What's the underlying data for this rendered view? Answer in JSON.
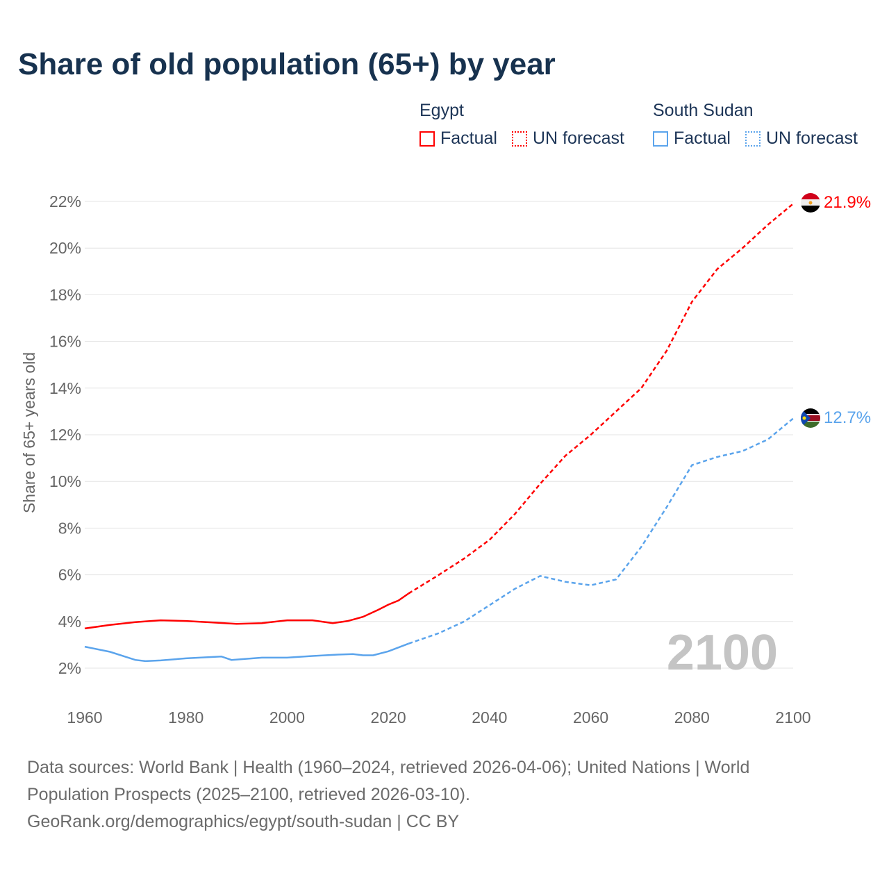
{
  "title": "Share of old population (65+) by year",
  "legend": {
    "groups": [
      {
        "name": "Egypt",
        "factual": "Factual",
        "forecast": "UN forecast",
        "color": "#ff0000"
      },
      {
        "name": "South Sudan",
        "factual": "Factual",
        "forecast": "UN forecast",
        "color": "#5ba4ec"
      }
    ]
  },
  "chart_data": {
    "type": "line",
    "title": "Share of old population (65+) by year",
    "ylabel": "Share of 65+ years old",
    "xlabel": "",
    "xlim": [
      1960,
      2100
    ],
    "ylim": [
      1,
      23
    ],
    "xticks": [
      "1960",
      "1980",
      "2000",
      "2020",
      "2040",
      "2060",
      "2080",
      "2100"
    ],
    "yticks": [
      "2%",
      "4%",
      "6%",
      "8%",
      "10%",
      "12%",
      "14%",
      "16%",
      "18%",
      "20%",
      "22%"
    ],
    "year_watermark": "2100",
    "series": [
      {
        "name": "Egypt",
        "color": "#ff0000",
        "end_label": "21.9%",
        "factual": {
          "x": [
            1960,
            1965,
            1970,
            1975,
            1980,
            1985,
            1990,
            1995,
            2000,
            2005,
            2009,
            2012,
            2015,
            2018,
            2020,
            2022,
            2024
          ],
          "y": [
            3.7,
            3.85,
            3.97,
            4.05,
            4.02,
            3.96,
            3.9,
            3.93,
            4.05,
            4.05,
            3.93,
            4.02,
            4.2,
            4.5,
            4.72,
            4.9,
            5.2
          ]
        },
        "forecast": {
          "x": [
            2024,
            2030,
            2035,
            2040,
            2045,
            2050,
            2055,
            2060,
            2065,
            2070,
            2075,
            2080,
            2085,
            2090,
            2095,
            2100
          ],
          "y": [
            5.2,
            6.0,
            6.7,
            7.5,
            8.6,
            9.9,
            11.1,
            12.0,
            13.0,
            14.0,
            15.6,
            17.7,
            19.1,
            20.0,
            21.0,
            21.9
          ]
        }
      },
      {
        "name": "South Sudan",
        "color": "#5ba4ec",
        "end_label": "12.7%",
        "factual": {
          "x": [
            1960,
            1965,
            1970,
            1972,
            1975,
            1980,
            1987,
            1989,
            1995,
            2000,
            2005,
            2010,
            2013,
            2015,
            2017,
            2020,
            2024
          ],
          "y": [
            2.92,
            2.7,
            2.35,
            2.3,
            2.33,
            2.42,
            2.5,
            2.35,
            2.45,
            2.45,
            2.52,
            2.58,
            2.6,
            2.55,
            2.55,
            2.72,
            3.05
          ]
        },
        "forecast": {
          "x": [
            2024,
            2030,
            2035,
            2040,
            2045,
            2050,
            2055,
            2060,
            2065,
            2070,
            2075,
            2080,
            2085,
            2090,
            2095,
            2100
          ],
          "y": [
            3.05,
            3.5,
            4.0,
            4.7,
            5.4,
            5.95,
            5.7,
            5.55,
            5.8,
            7.2,
            8.9,
            10.7,
            11.05,
            11.3,
            11.8,
            12.7
          ]
        }
      }
    ]
  },
  "footer": {
    "line1": "Data sources: World Bank | Health (1960–2024, retrieved 2026-04-06); United Nations | World",
    "line2": "Population Prospects (2025–2100, retrieved 2026-03-10).",
    "line3": "GeoRank.org/demographics/egypt/south-sudan | CC BY"
  }
}
